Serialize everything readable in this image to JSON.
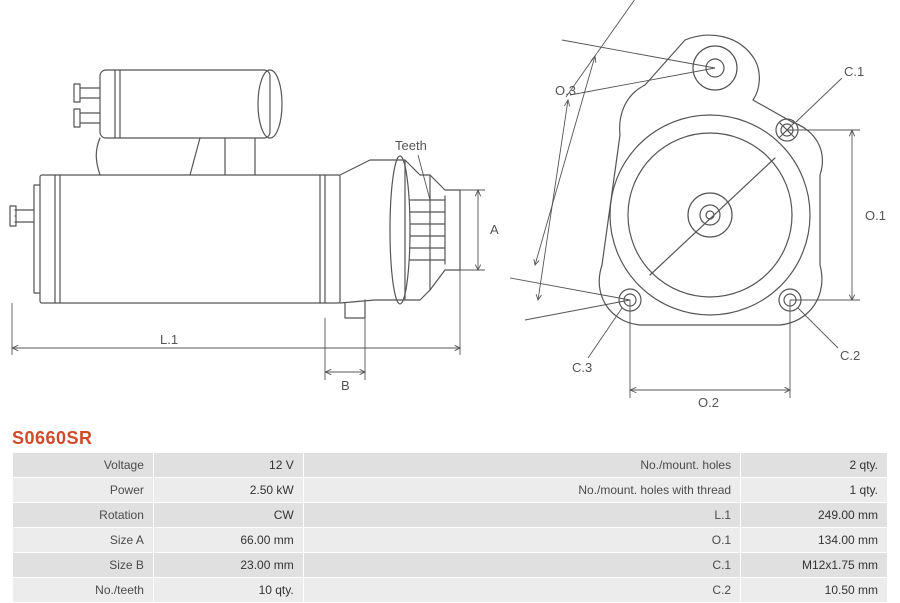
{
  "product_code": "S0660SR",
  "product_code_color": "#d24a2a",
  "diagram_labels": {
    "teeth": "Teeth",
    "A": "A",
    "B": "B",
    "L1": "L.1",
    "O1": "O.1",
    "O2": "O.2",
    "O3": "O.3",
    "C1": "C.1",
    "C2": "C.2",
    "C3": "C.3"
  },
  "spec_rows": [
    {
      "label": "Voltage",
      "value": "12 V",
      "label2": "No./mount. holes",
      "value2": "2 qty."
    },
    {
      "label": "Power",
      "value": "2.50 kW",
      "label2": "No./mount. holes with thread",
      "value2": "1 qty."
    },
    {
      "label": "Rotation",
      "value": "CW",
      "label2": "L.1",
      "value2": "249.00 mm"
    },
    {
      "label": "Size A",
      "value": "66.00 mm",
      "label2": "O.1",
      "value2": "134.00 mm"
    },
    {
      "label": "Size B",
      "value": "23.00 mm",
      "label2": "C.1",
      "value2": "M12x1.75 mm"
    },
    {
      "label": "No./teeth",
      "value": "10 qty.",
      "label2": "C.2",
      "value2": "10.50 mm"
    }
  ],
  "table_colors": {
    "row_even": "#e0e0e0",
    "row_odd": "#ececec",
    "border": "#ffffff"
  },
  "stroke_color": "#555555",
  "label_font_size": 13,
  "diagram": {
    "type": "technical-drawing",
    "stroke_width": 1.2,
    "arrow_size": 5
  }
}
